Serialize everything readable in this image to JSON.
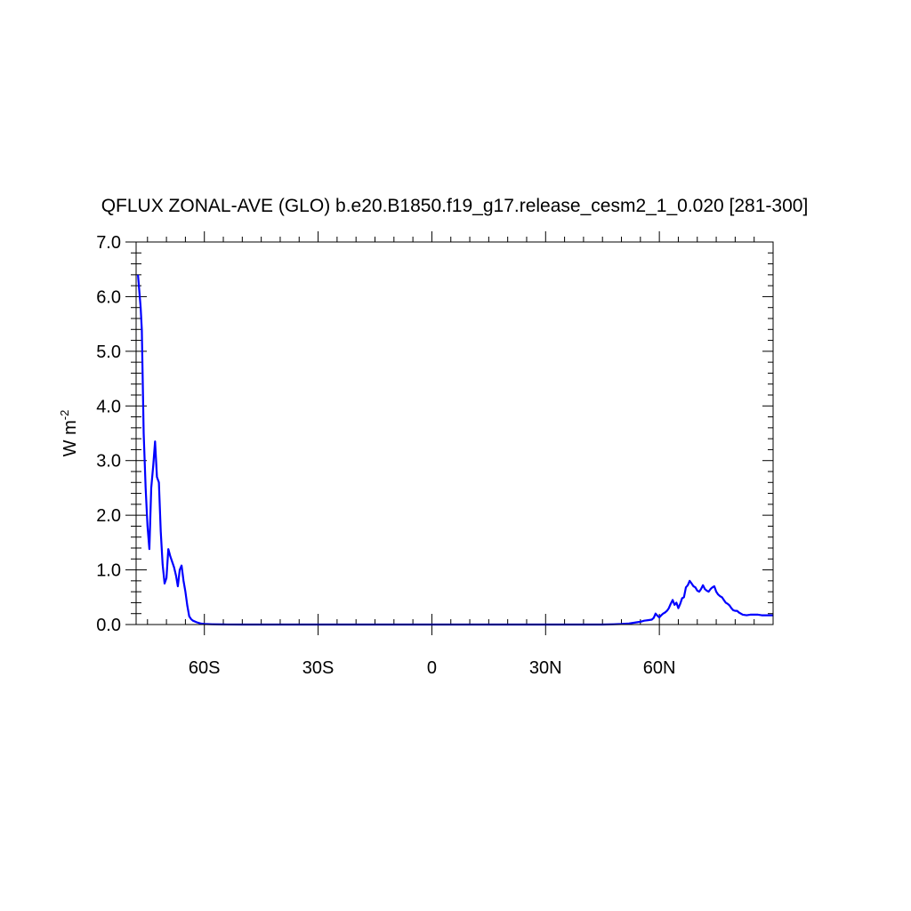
{
  "chart_data": {
    "type": "line",
    "title": "QFLUX ZONAL-AVE (GLO) b.e20.B1850.f19_g17.release_cesm2_1_0.020 [281-300]",
    "ylabel": "W m",
    "ylabel_superscript": "-2",
    "xlim": [
      -78,
      90
    ],
    "ylim": [
      0,
      7
    ],
    "x_ticks": [
      {
        "value": -60,
        "label": "60S"
      },
      {
        "value": -30,
        "label": "30S"
      },
      {
        "value": 0,
        "label": "0"
      },
      {
        "value": 30,
        "label": "30N"
      },
      {
        "value": 60,
        "label": "60N"
      }
    ],
    "y_ticks": [
      {
        "value": 0,
        "label": "0.0"
      },
      {
        "value": 1,
        "label": "1.0"
      },
      {
        "value": 2,
        "label": "2.0"
      },
      {
        "value": 3,
        "label": "3.0"
      },
      {
        "value": 4,
        "label": "4.0"
      },
      {
        "value": 5,
        "label": "5.0"
      },
      {
        "value": 6,
        "label": "6.0"
      },
      {
        "value": 7,
        "label": "7.0"
      }
    ],
    "grid": false,
    "line_color": "#0000ff",
    "series": [
      {
        "x": [
          -77.5,
          -76.8,
          -76.5,
          -76.0,
          -75.5,
          -75.0,
          -74.5,
          -74.0,
          -73.5,
          -73.0,
          -72.5,
          -72.0,
          -71.5,
          -71.0,
          -70.5,
          -70.0,
          -69.5,
          -69.0,
          -68.5,
          -68.0,
          -67.5,
          -67.0,
          -66.5,
          -66.0,
          -65.5,
          -65.0,
          -64.5,
          -64.0,
          -63.5,
          -63.0,
          -62.0,
          -61.0,
          -60.0,
          -58.0,
          -55.0,
          -50.0,
          -40.0,
          -30.0,
          -20.0,
          -10.0,
          0.0,
          10.0,
          20.0,
          30.0,
          40.0,
          45.0,
          48.0,
          50.0,
          52.0,
          54.0,
          55.0,
          56.0,
          57.0,
          58.0,
          58.5,
          59.0,
          59.5,
          60.0,
          60.5,
          61.0,
          61.5,
          62.0,
          62.5,
          63.0,
          63.5,
          64.0,
          64.5,
          65.0,
          65.5,
          66.0,
          66.5,
          67.0,
          67.5,
          68.0,
          68.5,
          69.0,
          69.5,
          70.0,
          70.5,
          71.0,
          71.5,
          72.0,
          72.5,
          73.0,
          73.5,
          74.0,
          74.5,
          75.0,
          75.5,
          76.0,
          76.5,
          77.0,
          77.5,
          78.0,
          78.5,
          79.0,
          79.5,
          80.0,
          80.5,
          81.0,
          82.0,
          83.0,
          84.0,
          85.0,
          86.0,
          87.0,
          88.0,
          89.0,
          90.0
        ],
        "y": [
          6.4,
          5.8,
          5.4,
          3.5,
          2.5,
          1.8,
          1.38,
          2.5,
          2.9,
          3.35,
          2.7,
          2.6,
          1.7,
          1.1,
          0.75,
          0.85,
          1.38,
          1.25,
          1.15,
          1.05,
          0.9,
          0.7,
          1.0,
          1.08,
          0.8,
          0.6,
          0.35,
          0.15,
          0.1,
          0.07,
          0.04,
          0.02,
          0.01,
          0.005,
          0.002,
          0.0,
          0.0,
          0.0,
          0.0,
          0.0,
          0.0,
          0.0,
          0.0,
          0.0,
          0.0,
          0.0,
          0.005,
          0.01,
          0.02,
          0.04,
          0.05,
          0.07,
          0.08,
          0.09,
          0.12,
          0.2,
          0.16,
          0.13,
          0.17,
          0.2,
          0.22,
          0.25,
          0.3,
          0.38,
          0.45,
          0.36,
          0.4,
          0.3,
          0.38,
          0.48,
          0.5,
          0.68,
          0.72,
          0.8,
          0.75,
          0.7,
          0.68,
          0.62,
          0.6,
          0.65,
          0.72,
          0.65,
          0.62,
          0.6,
          0.65,
          0.68,
          0.7,
          0.6,
          0.55,
          0.52,
          0.5,
          0.45,
          0.4,
          0.38,
          0.35,
          0.3,
          0.26,
          0.25,
          0.25,
          0.22,
          0.18,
          0.17,
          0.18,
          0.18,
          0.18,
          0.17,
          0.17,
          0.17,
          0.17
        ]
      }
    ]
  }
}
